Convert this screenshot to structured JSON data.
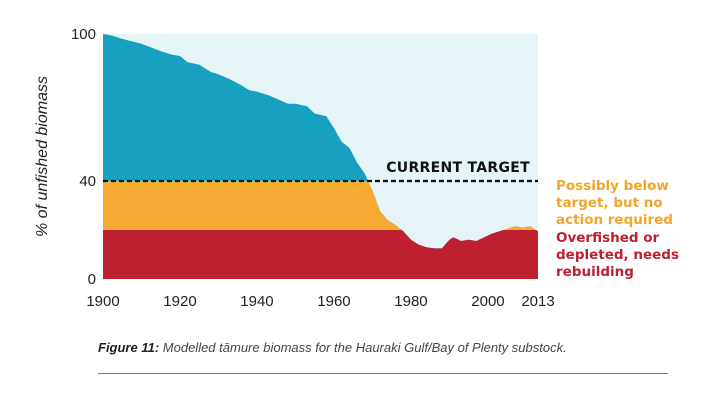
{
  "colors": {
    "biomass": "#17a0bf",
    "background_fill": "#e5f4f7",
    "possibly_below": "#f6aa33",
    "overfished": "#be2030",
    "possibly_below_text": "#f2a52a",
    "overfished_text": "#be2030",
    "target_line": "#111111"
  },
  "chart_data": {
    "type": "area",
    "title": "",
    "xlabel": "",
    "ylabel": "% of unfished biomass",
    "xlim": [
      1900,
      2013
    ],
    "ylim": [
      0,
      100
    ],
    "x_ticks": [
      1900,
      1920,
      1940,
      1960,
      1980,
      2000,
      2013
    ],
    "y_ticks": [
      0,
      40,
      100
    ],
    "grid": false,
    "target_level": 40,
    "target_label": "CURRENT TARGET",
    "overfished_threshold": 20,
    "zones": [
      {
        "name": "Possibly below target, but no action required",
        "lines": [
          "Possibly below",
          "target, but no",
          "action required"
        ],
        "from": 20,
        "to": 40
      },
      {
        "name": "Overfished or depleted, needs rebuilding",
        "lines": [
          "Overfished or",
          "depleted, needs",
          "rebuilding"
        ],
        "from": 0,
        "to": 20
      }
    ],
    "series": [
      {
        "x": [
          1900,
          1902,
          1905,
          1910,
          1915,
          1918,
          1920,
          1922,
          1925,
          1928,
          1930,
          1933,
          1936,
          1938,
          1940,
          1943,
          1946,
          1948,
          1950,
          1953,
          1955,
          1958,
          1960,
          1962,
          1964,
          1966,
          1968,
          1970,
          1972,
          1974,
          1976,
          1978,
          1980,
          1982,
          1984,
          1986,
          1988,
          1990,
          1991,
          1993,
          1995,
          1997,
          1999,
          2001,
          2003,
          2005,
          2007,
          2009,
          2011,
          2013
        ],
        "values": [
          100,
          99.5,
          98,
          96,
          93,
          91.5,
          91,
          88.5,
          87.5,
          84.5,
          83.5,
          81.5,
          79,
          77,
          76.5,
          75,
          73,
          71.5,
          71.5,
          70.5,
          67.5,
          66.5,
          61.5,
          56,
          53.5,
          47.5,
          43,
          36,
          27.5,
          24,
          22,
          19.5,
          16,
          14,
          13,
          12.5,
          12.5,
          16,
          17,
          15.5,
          16,
          15.5,
          17,
          18.5,
          19.5,
          20.5,
          21.5,
          21,
          21.5,
          19.5
        ]
      }
    ]
  },
  "caption": {
    "label": "Figure 11:",
    "text": " Modelled tāmure biomass for the Hauraki Gulf/Bay of Plenty substock."
  }
}
